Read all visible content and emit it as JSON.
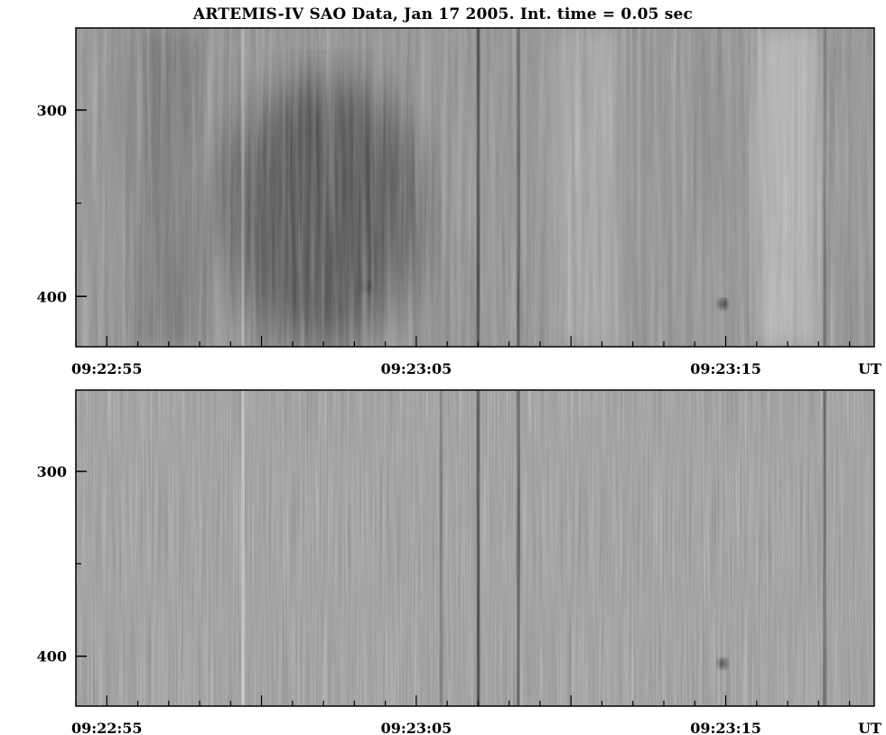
{
  "title": "ARTEMIS-IV SAO Data, Jan 17 2005. Int. time = 0.05 sec",
  "chart_data": [
    {
      "type": "heatmap",
      "panel": "top",
      "colormap": "grayscale",
      "y_ticks": [
        "300",
        "400"
      ],
      "y_tick_values": [
        300,
        400
      ],
      "ylim": [
        256,
        427
      ],
      "x_ticks": [
        "09:22:55",
        "09:23:05",
        "09:23:15"
      ],
      "x_tick_seconds": [
        55,
        65,
        75
      ],
      "x_unit_label": "UT",
      "xlim_seconds": [
        54,
        79.8
      ],
      "base_gray": "#8a8a8a",
      "features": [
        {
          "kind": "dark-region",
          "t": 62.0,
          "f": 355,
          "strength": 0.55
        },
        {
          "kind": "dark-band",
          "t": 57.0,
          "f": 330,
          "strength": 0.2
        },
        {
          "kind": "bright-band",
          "t": 77.0,
          "f": 300,
          "strength": 0.35
        },
        {
          "kind": "bright-band",
          "t": 70.5,
          "f": 350,
          "strength": 0.2
        },
        {
          "kind": "dark-stripe",
          "t": 67.0,
          "strength": 0.8
        },
        {
          "kind": "dark-stripe",
          "t": 68.3,
          "strength": 0.6
        },
        {
          "kind": "dark-stripe",
          "t": 78.2,
          "strength": 0.5
        },
        {
          "kind": "bright-stripe",
          "t": 59.4,
          "strength": 0.5
        },
        {
          "kind": "dark-spot",
          "t": 74.9,
          "f": 404,
          "strength": 0.7
        },
        {
          "kind": "dark-spot",
          "t": 63.4,
          "f": 395,
          "strength": 0.4
        }
      ]
    },
    {
      "type": "heatmap",
      "panel": "bottom",
      "colormap": "grayscale",
      "y_ticks": [
        "300",
        "400"
      ],
      "y_tick_values": [
        300,
        400
      ],
      "ylim": [
        256,
        427
      ],
      "x_ticks": [
        "09:22:55",
        "09:23:05",
        "09:23:15"
      ],
      "x_tick_seconds": [
        55,
        65,
        75
      ],
      "x_unit_label": "UT",
      "xlim_seconds": [
        54,
        79.8
      ],
      "base_gray": "#9a9a9a",
      "features": [
        {
          "kind": "dark-stripe",
          "t": 67.0,
          "strength": 1.0
        },
        {
          "kind": "dark-stripe",
          "t": 68.3,
          "strength": 0.7
        },
        {
          "kind": "bright-stripe",
          "t": 59.4,
          "strength": 0.6
        },
        {
          "kind": "dark-stripe",
          "t": 65.8,
          "strength": 0.45
        },
        {
          "kind": "dark-stripe",
          "t": 78.2,
          "strength": 0.6
        },
        {
          "kind": "dark-spot",
          "t": 74.9,
          "f": 404,
          "strength": 0.6
        }
      ]
    }
  ]
}
